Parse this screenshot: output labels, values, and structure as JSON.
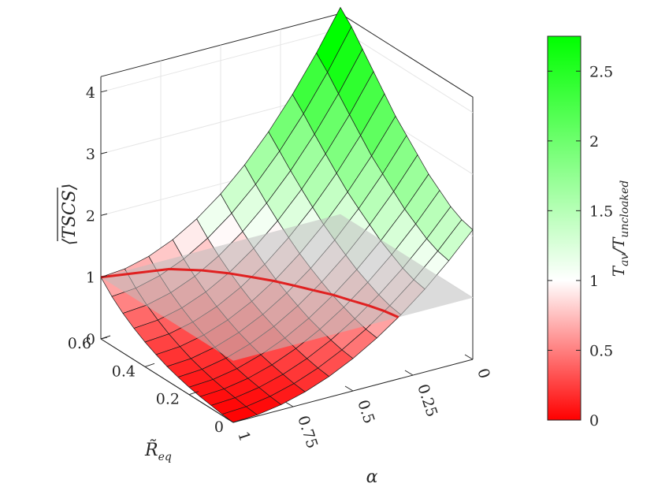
{
  "chart_data": {
    "type": "surface3d",
    "z_label": "⟨TSCS⟩",
    "x_label": "α",
    "y_label": "R̃",
    "y_label_sub": "eq",
    "colorbar_label": "T",
    "colorbar_label_sub1": "av",
    "colorbar_label_mid": "/T",
    "colorbar_label_sub2": "uncloaked",
    "alpha_ticks": [
      "1",
      "0.75",
      "0.5",
      "0.25",
      "0"
    ],
    "r_ticks": [
      "0",
      "0.2",
      "0.4",
      "0.6"
    ],
    "z_ticks": [
      "0",
      "1",
      "2",
      "3",
      "4"
    ],
    "colorbar_ticks": [
      "0",
      "0.5",
      "1",
      "1.5",
      "2",
      "2.5"
    ],
    "alpha_range": [
      0,
      1
    ],
    "r_range": [
      0,
      0.6
    ],
    "z_range": [
      0,
      4
    ],
    "colorbar_range": [
      0,
      2.75
    ],
    "alpha_grid": [
      1,
      0.9,
      0.8,
      0.7,
      0.6,
      0.5,
      0.4,
      0.3,
      0.2,
      0.1,
      0
    ],
    "r_grid": [
      0,
      0.05,
      0.1,
      0.15,
      0.2,
      0.25,
      0.3,
      0.35,
      0.4,
      0.45,
      0.5,
      0.55,
      0.6
    ],
    "z_edge_alpha1": [
      0.0,
      0.02,
      0.05,
      0.08,
      0.12,
      0.17,
      0.23,
      0.31,
      0.4,
      0.51,
      0.64,
      0.8,
      1.0
    ],
    "z_edge_alpha0": [
      2.1,
      2.15,
      2.25,
      2.4,
      2.55,
      2.75,
      2.95,
      3.15,
      3.4,
      3.65,
      3.9,
      4.15,
      4.35
    ],
    "reference_plane_z": 1,
    "red_contour": "TSCS = 1",
    "colors": {
      "low": "#ff0000",
      "mid": "#ffffff",
      "high": "#00ff00",
      "contour": "#e02020",
      "plane": "#bdbdbd"
    },
    "grid": true
  }
}
